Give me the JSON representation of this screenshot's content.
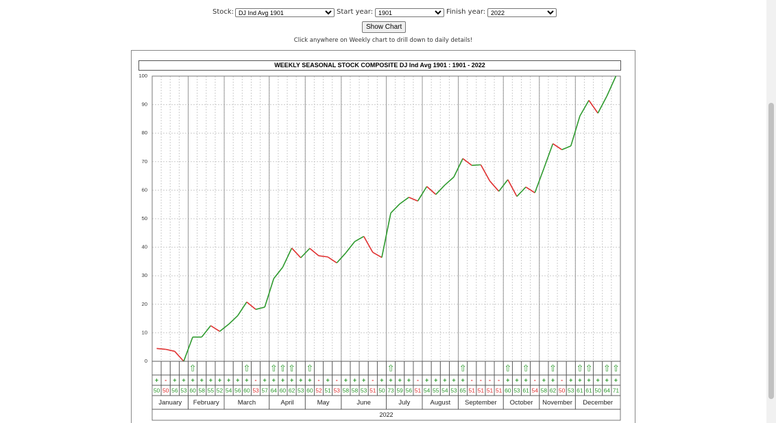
{
  "controls": {
    "stock_label": "Stock:",
    "stock": "DJ Ind Avg 1901",
    "start_label": "Start year:",
    "start_year": "1901",
    "finish_label": "Finish year:",
    "finish_year": "2022",
    "button": "Show Chart",
    "hint": "Click anywhere on Weekly chart to drill down to daily details!"
  },
  "chart_data": {
    "type": "line",
    "title": "WEEKLY SEASONAL STOCK COMPOSITE DJ Ind Avg 1901 : 1901 - 2022",
    "ylim": [
      0,
      100
    ],
    "yticks": [
      0,
      10,
      20,
      30,
      40,
      50,
      60,
      70,
      80,
      90,
      100
    ],
    "grid": true,
    "values": [
      4.5,
      4.2,
      3.5,
      0,
      8.5,
      8.5,
      12.5,
      10.5,
      13,
      16,
      20.8,
      18.2,
      19,
      29,
      33,
      39.7,
      36.3,
      39.6,
      37,
      36.6,
      34.5,
      38,
      42,
      43.8,
      38.2,
      36.4,
      52,
      55.2,
      57.5,
      56.2,
      61.3,
      58.5,
      61.8,
      64.6,
      71.1,
      68.7,
      68.9,
      63.2,
      59.6,
      63.7,
      57.8,
      61.1,
      59.1,
      67.6,
      76.3,
      74.2,
      75.5,
      86,
      91.5,
      87,
      93,
      100
    ],
    "up_color": "#2e9a2e",
    "down_color": "#e03030",
    "signals": [
      null,
      null,
      null,
      null,
      "⇧",
      null,
      null,
      null,
      null,
      null,
      "⇧",
      null,
      null,
      "⇧",
      "⇧",
      "⇧",
      null,
      "⇧",
      null,
      null,
      null,
      null,
      null,
      null,
      null,
      null,
      "⇧",
      null,
      null,
      null,
      null,
      null,
      null,
      null,
      "⇧",
      null,
      null,
      null,
      null,
      "⇧",
      null,
      "⇧",
      null,
      null,
      "⇧",
      null,
      null,
      "⇧",
      "⇧",
      null,
      "⇧",
      "⇧"
    ],
    "signs": [
      "+",
      "-",
      "+",
      "+",
      "+",
      "+",
      "+",
      "+",
      "+",
      "+",
      "+",
      "-",
      "+",
      "+",
      "+",
      "+",
      "+",
      "+",
      "-",
      "+",
      "-",
      "+",
      "+",
      "+",
      "-",
      "+",
      "+",
      "+",
      "+",
      "-",
      "+",
      "+",
      "+",
      "+",
      "+",
      "-",
      "-",
      "-",
      "-",
      "+",
      "+",
      "+",
      "-",
      "+",
      "+",
      "-",
      "+",
      "+",
      "+",
      "+",
      "+",
      "+"
    ],
    "percents": [
      50,
      50,
      56,
      53,
      60,
      58,
      55,
      52,
      54,
      56,
      60,
      53,
      57,
      64,
      60,
      62,
      53,
      60,
      52,
      51,
      53,
      58,
      58,
      53,
      51,
      50,
      73,
      59,
      56,
      51,
      54,
      55,
      54,
      53,
      65,
      51,
      51,
      51,
      51,
      60,
      53,
      61,
      54,
      58,
      62,
      50,
      53,
      61,
      61,
      50,
      64,
      71
    ],
    "months": [
      "January",
      "February",
      "March",
      "April",
      "May",
      "June",
      "July",
      "August",
      "September",
      "October",
      "November",
      "December"
    ],
    "year": "2022"
  }
}
